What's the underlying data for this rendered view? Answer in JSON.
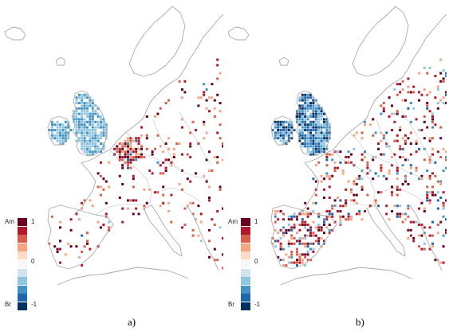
{
  "panels": [
    {
      "caption": "a)",
      "legend": {
        "top_label": "Am",
        "bottom_label": "Br",
        "ticks": [
          "1",
          "0",
          "-1"
        ],
        "colors": [
          "#67001f",
          "#b2182b",
          "#d6604d",
          "#f4a582",
          "#fddbc7",
          "#f7f7f7",
          "#d1e5f0",
          "#92c5de",
          "#4393c3",
          "#2166ac",
          "#053061"
        ]
      },
      "pattern": "a"
    },
    {
      "caption": "b)",
      "legend": {
        "top_label": "Am",
        "bottom_label": "Br",
        "ticks": [
          "1",
          "0",
          "-1"
        ],
        "colors": [
          "#67001f",
          "#b2182b",
          "#d6604d",
          "#f4a582",
          "#fddbc7",
          "#f7f7f7",
          "#d1e5f0",
          "#92c5de",
          "#4393c3",
          "#2166ac",
          "#053061"
        ]
      },
      "pattern": "b"
    }
  ]
}
